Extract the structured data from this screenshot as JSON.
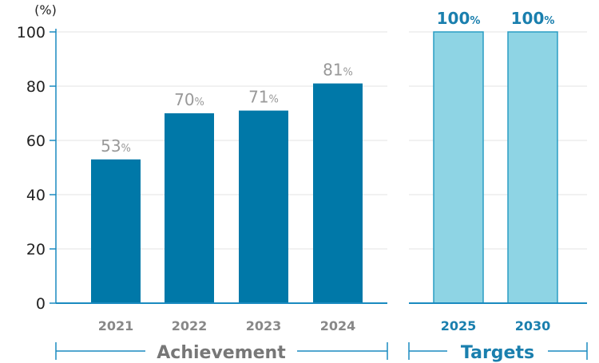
{
  "chart_data": {
    "type": "bar",
    "ylabel": "(%)",
    "ylim": [
      0,
      100
    ],
    "yticks": [
      0,
      20,
      40,
      60,
      80,
      100
    ],
    "grid": true,
    "groups": [
      {
        "name": "Achievement",
        "categories": [
          "2021",
          "2022",
          "2023",
          "2024"
        ],
        "values": [
          53,
          70,
          71,
          81
        ],
        "labels": [
          "53",
          "70",
          "71",
          "81"
        ],
        "color": "#0078a8",
        "label_color": "#999999",
        "tick_color": "#888888"
      },
      {
        "name": "Targets",
        "categories": [
          "2025",
          "2030"
        ],
        "values": [
          100,
          100
        ],
        "labels": [
          "100",
          "100"
        ],
        "color": "#8ed4e4",
        "stroke": "#2a9dc4",
        "label_color": "#1a7fae",
        "tick_color": "#1a7fae"
      }
    ],
    "value_suffix": "%",
    "colors": {
      "axis": "#1a8ac0",
      "grid": "#e3e3e3",
      "ytick_text": "#222222",
      "achievement_bracket": "#1a8ac0",
      "achievement_text": "#777777",
      "targets_bracket": "#1a8ac0",
      "targets_text": "#1a7fae"
    }
  }
}
